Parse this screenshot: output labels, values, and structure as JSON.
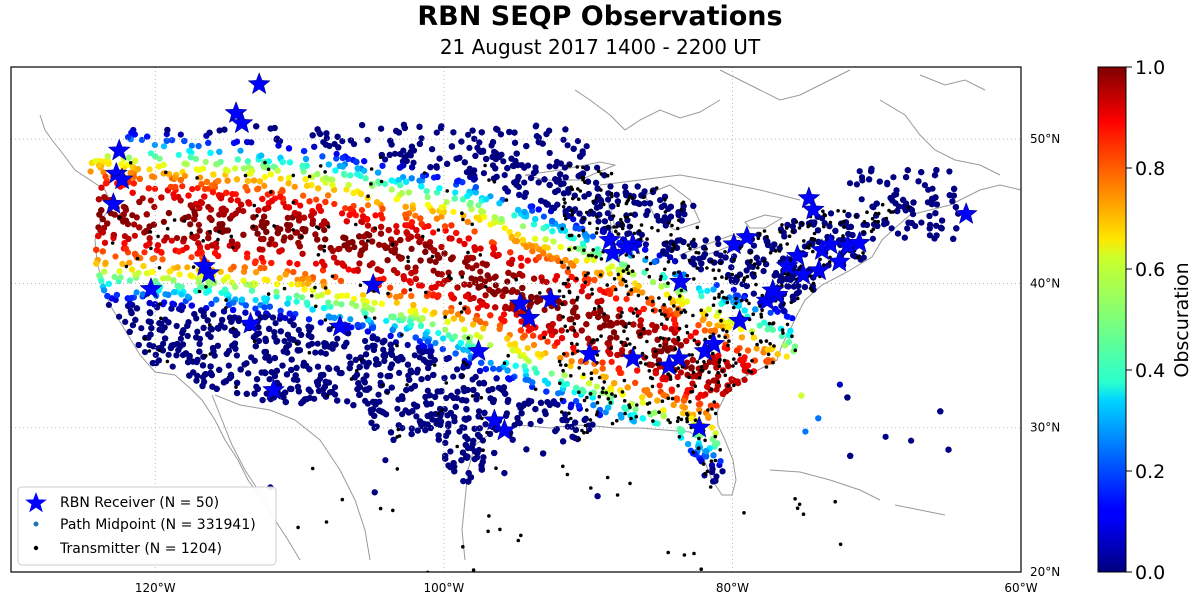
{
  "title": "RBN SEQP Observations",
  "subtitle": "21 August 2017 1400 - 2200 UT",
  "map": {
    "lon_range": [
      -130,
      -60
    ],
    "lat_range": [
      20,
      55
    ],
    "x_ticks": [
      {
        "lon": -120,
        "label": "120°W"
      },
      {
        "lon": -100,
        "label": "100°W"
      },
      {
        "lon": -80,
        "label": "80°W"
      },
      {
        "lon": -60,
        "label": "60°W"
      }
    ],
    "y_ticks": [
      {
        "lat": 20,
        "label": "20°N"
      },
      {
        "lat": 30,
        "label": "30°N"
      },
      {
        "lat": 40,
        "label": "40°N"
      },
      {
        "lat": 50,
        "label": "50°N"
      }
    ],
    "receivers": [
      [
        -112.8,
        53.8
      ],
      [
        -114.4,
        51.8
      ],
      [
        -114.0,
        51.1
      ],
      [
        -122.5,
        49.2
      ],
      [
        -122.7,
        47.6
      ],
      [
        -122.3,
        47.2
      ],
      [
        -122.9,
        45.5
      ],
      [
        -116.3,
        40.7
      ],
      [
        -116.6,
        41.2
      ],
      [
        -120.3,
        39.6
      ],
      [
        -113.4,
        37.2
      ],
      [
        -111.8,
        32.6
      ],
      [
        -107.2,
        37.0
      ],
      [
        -104.9,
        39.9
      ],
      [
        -95.8,
        29.8
      ],
      [
        -97.6,
        35.3
      ],
      [
        -94.7,
        38.6
      ],
      [
        -94.1,
        37.6
      ],
      [
        -92.6,
        38.9
      ],
      [
        -89.9,
        35.1
      ],
      [
        -86.9,
        42.7
      ],
      [
        -87.4,
        42.5
      ],
      [
        -88.5,
        43.0
      ],
      [
        -86.9,
        34.8
      ],
      [
        -84.4,
        34.3
      ],
      [
        -83.7,
        34.8
      ],
      [
        -81.9,
        35.3
      ],
      [
        -81.3,
        35.8
      ],
      [
        -82.3,
        30.0
      ],
      [
        -83.6,
        40.1
      ],
      [
        -79.5,
        37.4
      ],
      [
        -77.6,
        38.8
      ],
      [
        -76.9,
        39.2
      ],
      [
        -77.2,
        39.5
      ],
      [
        -79.9,
        42.7
      ],
      [
        -76.2,
        41.2
      ],
      [
        -75.1,
        40.6
      ],
      [
        -73.8,
        42.3
      ],
      [
        -73.2,
        42.7
      ],
      [
        -72.6,
        41.5
      ],
      [
        -72.0,
        42.6
      ],
      [
        -71.2,
        42.8
      ],
      [
        -74.7,
        45.9
      ],
      [
        -74.4,
        45.1
      ],
      [
        -63.8,
        44.8
      ],
      [
        -75.5,
        41.9
      ],
      [
        -79.0,
        43.2
      ],
      [
        -88.3,
        42.1
      ],
      [
        -96.5,
        30.5
      ],
      [
        -74.0,
        40.9
      ]
    ],
    "colormap": "jet"
  },
  "colorbar": {
    "label": "Obscuration",
    "range": [
      0.0,
      1.0
    ],
    "ticks": [
      "0.0",
      "0.2",
      "0.4",
      "0.6",
      "0.8",
      "1.0"
    ]
  },
  "legend": {
    "location": "lower-left",
    "items": [
      {
        "label": "RBN Receiver (N = 50)",
        "color": "#0000ff",
        "marker": "star"
      },
      {
        "label": "Path Midpoint (N = 331941)",
        "color": "#1f77b4",
        "marker": "dot"
      },
      {
        "label": "Transmitter (N = 1204)",
        "color": "#000000",
        "marker": "dot"
      }
    ]
  }
}
